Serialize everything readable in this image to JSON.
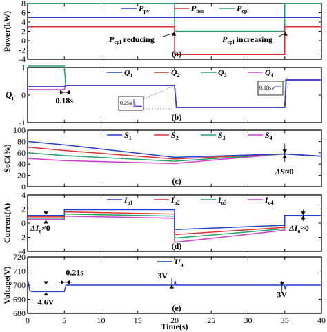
{
  "chart_data": [
    {
      "id": "a",
      "type": "line",
      "panel_label": "(a)",
      "ylabel": "Power(kW)",
      "ylim": [
        -4,
        8
      ],
      "yticks": [
        -4,
        -2,
        0,
        2,
        4,
        6,
        8
      ],
      "xlim": [
        0,
        40
      ],
      "series": [
        {
          "name_main": "P",
          "name_sub": "pv",
          "color": "#1f3fd6",
          "points": [
            [
              0,
              5
            ],
            [
              40,
              5
            ]
          ]
        },
        {
          "name_main": "P",
          "name_sub": "bsu",
          "color": "#e03030",
          "points": [
            [
              0,
              3
            ],
            [
              20,
              3
            ],
            [
              20,
              -3
            ],
            [
              35,
              -3
            ],
            [
              35,
              3
            ],
            [
              40,
              3
            ]
          ]
        },
        {
          "name_main": "P",
          "name_sub": "cpl",
          "color": "#22a36a",
          "points": [
            [
              0,
              8
            ],
            [
              20,
              8
            ],
            [
              20,
              2
            ],
            [
              35,
              2
            ],
            [
              35,
              8
            ],
            [
              40,
              8
            ]
          ]
        }
      ],
      "annotations": [
        {
          "main": "P",
          "sub": "cpl",
          "text": " reducing"
        },
        {
          "main": "P",
          "sub": "cpl",
          "text": " increasing"
        }
      ]
    },
    {
      "id": "b",
      "type": "line",
      "panel_label": "(b)",
      "ylabel_main": "Q",
      "ylabel_sub": "i",
      "ylim": [
        -1,
        1
      ],
      "yticks": [
        -1,
        0,
        1
      ],
      "xlim": [
        0,
        40
      ],
      "series": [
        {
          "name_main": "Q",
          "name_sub": "1",
          "color": "#1f3fd6",
          "points": [
            [
              0,
              0.3
            ],
            [
              5,
              0.3
            ],
            [
              5.18,
              0.35
            ],
            [
              20,
              0.35
            ],
            [
              20.25,
              -0.45
            ],
            [
              35,
              -0.45
            ],
            [
              35.18,
              0.55
            ],
            [
              40,
              0.55
            ]
          ]
        },
        {
          "name_main": "Q",
          "name_sub": "2",
          "color": "#e03030",
          "points": [
            [
              0,
              0.3
            ],
            [
              5,
              0.3
            ],
            [
              5.18,
              0.35
            ],
            [
              20,
              0.35
            ],
            [
              20.25,
              -0.45
            ],
            [
              35,
              -0.45
            ],
            [
              35.18,
              0.55
            ],
            [
              40,
              0.55
            ]
          ]
        },
        {
          "name_main": "Q",
          "name_sub": "3",
          "color": "#22a36a",
          "points": [
            [
              0,
              1.05
            ],
            [
              5,
              1.05
            ],
            [
              5.18,
              0.35
            ],
            [
              20,
              0.35
            ],
            [
              20.25,
              -0.45
            ],
            [
              35,
              -0.45
            ],
            [
              35.18,
              0.55
            ],
            [
              40,
              0.55
            ]
          ]
        },
        {
          "name_main": "Q",
          "name_sub": "4",
          "color": "#d23ad2",
          "points": [
            [
              0,
              0.2
            ],
            [
              5,
              0.2
            ],
            [
              5.18,
              0.35
            ],
            [
              20,
              0.35
            ],
            [
              20.25,
              -0.45
            ],
            [
              35,
              -0.45
            ],
            [
              35.18,
              0.55
            ],
            [
              40,
              0.55
            ]
          ]
        }
      ],
      "annotations": [
        "0.18s",
        "0.25s",
        "0.18s"
      ]
    },
    {
      "id": "c",
      "type": "line",
      "panel_label": "(c)",
      "ylabel": "SoC(%)",
      "ylim": [
        0,
        100
      ],
      "yticks": [
        0,
        20,
        40,
        60,
        80,
        100
      ],
      "xlim": [
        0,
        40
      ],
      "series": [
        {
          "name_main": "S",
          "name_sub": "1",
          "color": "#1f3fd6",
          "points": [
            [
              0,
              80
            ],
            [
              5,
              74
            ],
            [
              20,
              52
            ],
            [
              35,
              58
            ],
            [
              40,
              54
            ]
          ]
        },
        {
          "name_main": "S",
          "name_sub": "2",
          "color": "#e03030",
          "points": [
            [
              0,
              70
            ],
            [
              5,
              64
            ],
            [
              20,
              49
            ],
            [
              35,
              58
            ],
            [
              40,
              54
            ]
          ]
        },
        {
          "name_main": "S",
          "name_sub": "3",
          "color": "#22a36a",
          "points": [
            [
              0,
              60
            ],
            [
              5,
              55
            ],
            [
              20,
              45
            ],
            [
              35,
              58
            ],
            [
              40,
              54
            ]
          ]
        },
        {
          "name_main": "S",
          "name_sub": "4",
          "color": "#d23ad2",
          "points": [
            [
              0,
              50
            ],
            [
              5,
              46
            ],
            [
              20,
              41
            ],
            [
              35,
              58
            ],
            [
              40,
              54
            ]
          ]
        }
      ],
      "annotations": [
        {
          "main": "ΔS",
          "text": "≈0"
        }
      ]
    },
    {
      "id": "d",
      "type": "line",
      "panel_label": "(d)",
      "ylabel": "Current(A)",
      "ylim": [
        -4,
        4
      ],
      "yticks": [
        -4,
        -2,
        0,
        2,
        4
      ],
      "xlim": [
        0,
        40
      ],
      "series": [
        {
          "name_main": "I",
          "name_sub": "o1",
          "color": "#1f3fd6",
          "points": [
            [
              0,
              1.1
            ],
            [
              5,
              1.1
            ],
            [
              5,
              1.9
            ],
            [
              20,
              1.9
            ],
            [
              20,
              -0.8
            ],
            [
              20.2,
              -0.9
            ],
            [
              35,
              -0.3
            ],
            [
              35,
              1.1
            ],
            [
              40,
              1.1
            ]
          ]
        },
        {
          "name_main": "I",
          "name_sub": "o2",
          "color": "#e03030",
          "points": [
            [
              0,
              0.9
            ],
            [
              5,
              0.9
            ],
            [
              5,
              1.6
            ],
            [
              20,
              1.3
            ],
            [
              20,
              -1.5
            ],
            [
              20.2,
              -1.6
            ],
            [
              35,
              -0.6
            ],
            [
              35,
              1.1
            ],
            [
              40,
              1.1
            ]
          ]
        },
        {
          "name_main": "I",
          "name_sub": "o3",
          "color": "#22a36a",
          "points": [
            [
              0,
              0.7
            ],
            [
              5,
              0.7
            ],
            [
              5,
              1.3
            ],
            [
              20,
              1.0
            ],
            [
              20,
              -2.0
            ],
            [
              20.2,
              -2.1
            ],
            [
              35,
              -0.8
            ],
            [
              35,
              1.1
            ],
            [
              40,
              1.1
            ]
          ]
        },
        {
          "name_main": "I",
          "name_sub": "o4",
          "color": "#d23ad2",
          "points": [
            [
              0,
              0.5
            ],
            [
              5,
              0.5
            ],
            [
              5,
              1.0
            ],
            [
              20,
              0.7
            ],
            [
              20,
              -2.6
            ],
            [
              20.2,
              -2.7
            ],
            [
              35,
              -1.0
            ],
            [
              35,
              1.1
            ],
            [
              40,
              1.1
            ]
          ]
        }
      ],
      "annotations": [
        {
          "main": "ΔI",
          "sub": "o",
          "text": "≠0"
        },
        {
          "main": "ΔI",
          "sub": "o",
          "text": "≈0"
        }
      ]
    },
    {
      "id": "e",
      "type": "line",
      "panel_label": "(e)",
      "ylabel": "Voltage(V)",
      "xlabel": "Time(s)",
      "ylim": [
        680,
        720
      ],
      "yticks": [
        680,
        690,
        700,
        710,
        720
      ],
      "xlim": [
        0,
        40
      ],
      "xticks": [
        0,
        5,
        10,
        15,
        20,
        25,
        30,
        35,
        40
      ],
      "series": [
        {
          "name_main": "U",
          "name_sub": "a",
          "color": "#1f3fd6",
          "points": [
            [
              0,
              700
            ],
            [
              0.05,
              703
            ],
            [
              0.3,
              696
            ],
            [
              0.6,
              695.4
            ],
            [
              5,
              695.4
            ],
            [
              5.21,
              700
            ],
            [
              20,
              700
            ],
            [
              20.05,
              703
            ],
            [
              20.2,
              700
            ],
            [
              35,
              700
            ],
            [
              35.05,
              697
            ],
            [
              35.2,
              700
            ],
            [
              40,
              700
            ]
          ]
        }
      ],
      "annotations": [
        "0.21s",
        "4.6V",
        "3V",
        "3V"
      ]
    }
  ]
}
